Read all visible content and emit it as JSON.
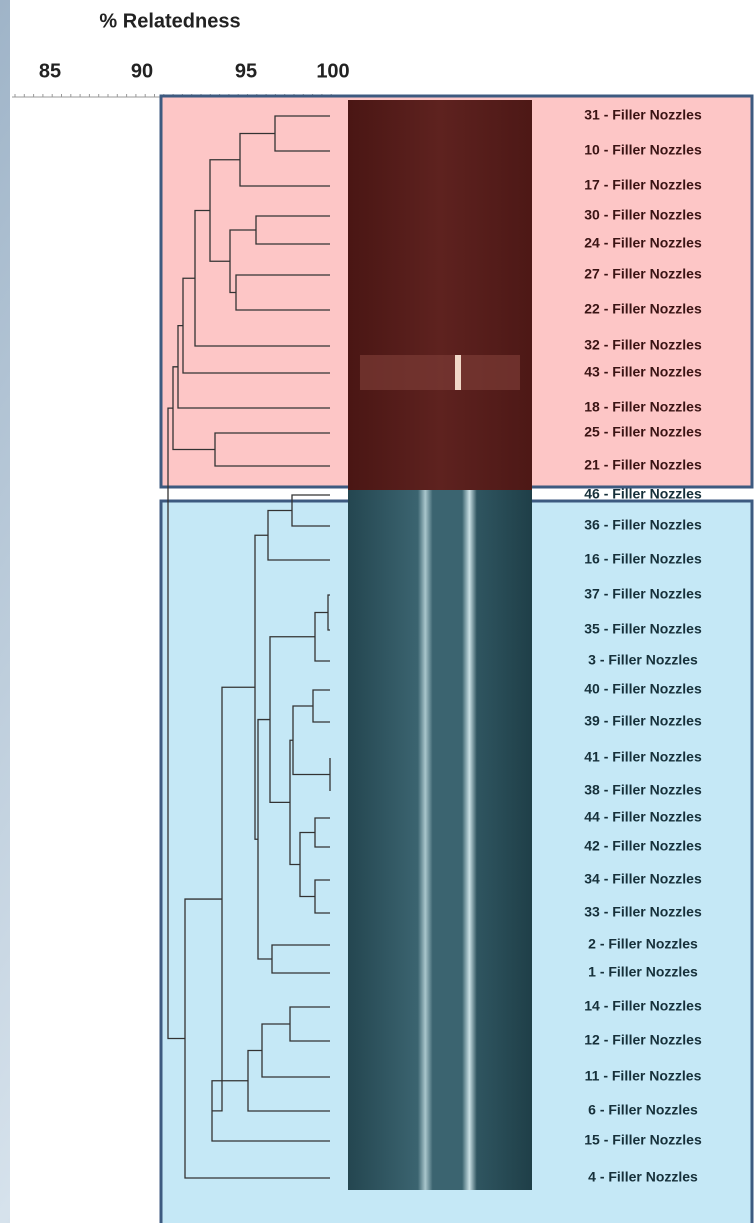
{
  "axis": {
    "title": "% Relatedness",
    "ticks": [
      "85",
      "90",
      "95",
      "100"
    ]
  },
  "groups": [
    {
      "labels": [
        "31 - Filler Nozzles",
        "10 - Filler Nozzles",
        "17 - Filler Nozzles",
        "30 - Filler Nozzles",
        "24 - Filler Nozzles",
        "27 - Filler Nozzles",
        "22 - Filler Nozzles",
        "32 - Filler Nozzles",
        "43 - Filler Nozzles",
        "18 - Filler Nozzles",
        "25 - Filler Nozzles",
        "21 - Filler Nozzles"
      ]
    },
    {
      "labels": [
        "46 - Filler Nozzles",
        "36 - Filler Nozzles",
        "16 - Filler Nozzles",
        "37 - Filler Nozzles",
        "35 - Filler Nozzles",
        "3 - Filler Nozzles",
        "40 - Filler Nozzles",
        "39 - Filler Nozzles",
        "41 - Filler Nozzles",
        "38 - Filler Nozzles",
        "44 - Filler Nozzles",
        "42 - Filler Nozzles",
        "34 - Filler Nozzles",
        "33 - Filler Nozzles",
        "2 - Filler Nozzles",
        "1 - Filler Nozzles",
        "14 - Filler Nozzles",
        "12 - Filler Nozzles",
        "11 - Filler Nozzles",
        "6 - Filler Nozzles",
        "15 - Filler Nozzles",
        "4 - Filler Nozzles"
      ]
    }
  ]
}
